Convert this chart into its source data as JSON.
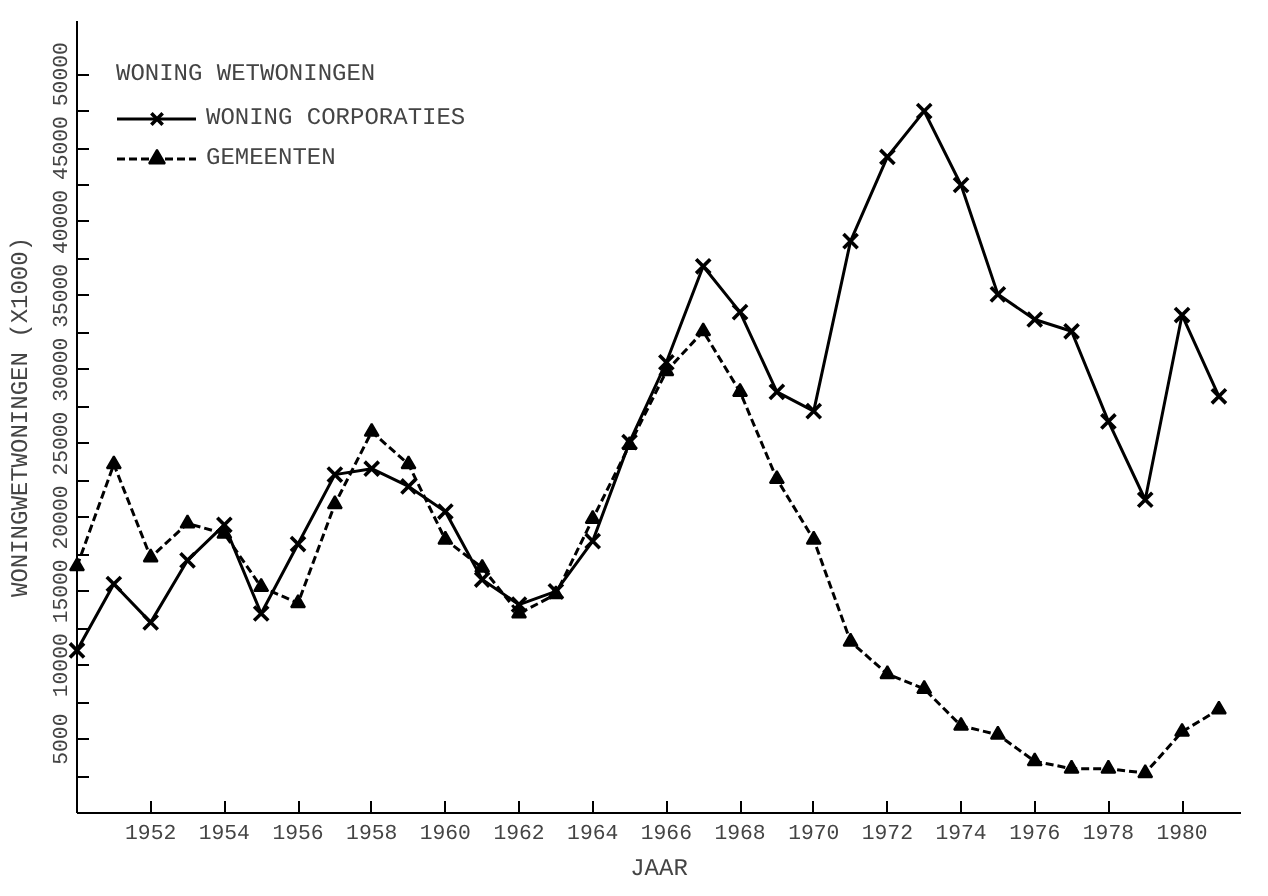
{
  "chart_data": {
    "type": "line",
    "xlabel": "JAAR",
    "ylabel": "WONINGWETWONINGEN (X1000)",
    "legend_title": "WONING WETWONINGEN",
    "x": [
      1950,
      1951,
      1952,
      1953,
      1954,
      1955,
      1956,
      1957,
      1958,
      1959,
      1960,
      1961,
      1962,
      1963,
      1964,
      1965,
      1966,
      1967,
      1968,
      1969,
      1970,
      1971,
      1972,
      1973,
      1974,
      1975,
      1976,
      1977,
      1978,
      1979,
      1980,
      1981
    ],
    "series": [
      {
        "name": "WONING CORPORATIES",
        "color": "#000000",
        "marker": "cross",
        "line_style": "solid",
        "values": [
          11000,
          15500,
          12900,
          17100,
          19500,
          13500,
          18200,
          22900,
          23300,
          22100,
          20400,
          15800,
          14100,
          15000,
          18400,
          25100,
          30500,
          37000,
          33900,
          28500,
          27200,
          38700,
          44400,
          47500,
          42500,
          35100,
          33400,
          32600,
          26500,
          21200,
          33700,
          28200
        ]
      },
      {
        "name": "GEMEENTEN",
        "color": "#000000",
        "marker": "triangle",
        "line_style": "dashed",
        "values": [
          16700,
          23600,
          17300,
          19600,
          18900,
          15300,
          14200,
          20900,
          25800,
          23600,
          18500,
          16600,
          13500,
          14800,
          19900,
          24900,
          29900,
          32600,
          28500,
          22600,
          18500,
          11600,
          9400,
          8400,
          5900,
          5300,
          3500,
          3000,
          3000,
          2700,
          5500,
          7000
        ]
      }
    ],
    "xlim": [
      1950,
      1981.6
    ],
    "ylim": [
      0,
      53600
    ],
    "xticks": [
      1952,
      1954,
      1956,
      1958,
      1960,
      1962,
      1964,
      1966,
      1968,
      1970,
      1972,
      1974,
      1976,
      1978,
      1980
    ],
    "yticks": [
      {
        "value": 2500,
        "label": null
      },
      5000,
      {
        "value": 7500,
        "label": null
      },
      10000,
      {
        "value": 12500,
        "label": null
      },
      15000,
      {
        "value": 17500,
        "label": null
      },
      20000,
      {
        "value": 22500,
        "label": null
      },
      25000,
      {
        "value": 27500,
        "label": null
      },
      30000,
      {
        "value": 32500,
        "label": null
      },
      35000,
      {
        "value": 37500,
        "label": null
      },
      40000,
      {
        "value": 42500,
        "label": null
      },
      45000,
      {
        "value": 47500,
        "label": null
      },
      50000
    ],
    "grid": false,
    "legend": "top left"
  }
}
